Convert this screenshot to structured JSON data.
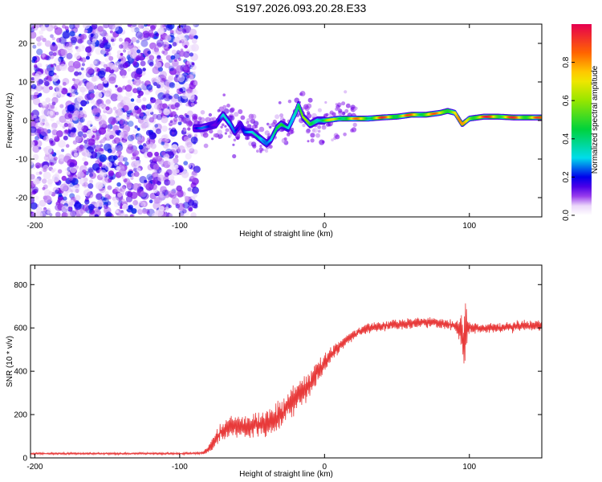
{
  "title": "S197.2026.093.20.28.E33",
  "chart_data": [
    {
      "type": "heatmap",
      "name": "spectrogram",
      "xlabel": "Height of straight line (km)",
      "ylabel": "Frequency (Hz)",
      "xlim": [
        -203,
        150
      ],
      "ylim": [
        -25,
        25
      ],
      "xticks": [
        -200,
        -100,
        0,
        100
      ],
      "xtick_labels": [
        "-200",
        "-100",
        "0",
        "100"
      ],
      "yticks": [
        -20,
        -10,
        0,
        10,
        20
      ],
      "ytick_labels": [
        "-20",
        "-10",
        "0",
        "10",
        "20"
      ],
      "noise_region_x": [
        -203,
        -88
      ],
      "signal_trace": {
        "x": [
          -90,
          -85,
          -80,
          -75,
          -70,
          -65,
          -62,
          -58,
          -55,
          -50,
          -45,
          -40,
          -37,
          -33,
          -30,
          -25,
          -20,
          -18,
          -15,
          -10,
          -5,
          0,
          10,
          20,
          30,
          40,
          50,
          60,
          70,
          80,
          85,
          90,
          95,
          100,
          110,
          120,
          130,
          140,
          150
        ],
        "frequency": [
          -2,
          -2,
          -1.5,
          -1,
          1.5,
          -1,
          -3,
          -1,
          -3,
          -3,
          -4.5,
          -6,
          -5,
          -2,
          -1,
          -2,
          2,
          4,
          1,
          -1,
          0,
          0,
          0.5,
          0.5,
          0.5,
          0.8,
          1,
          1.5,
          1.5,
          2,
          2.5,
          2,
          -1,
          0.5,
          1,
          1,
          0.8,
          0.8,
          0.8
        ],
        "amplitude": [
          0.2,
          0.25,
          0.3,
          0.25,
          0.35,
          0.3,
          0.35,
          0.3,
          0.35,
          0.3,
          0.45,
          0.5,
          0.45,
          0.45,
          0.5,
          0.55,
          0.6,
          0.55,
          0.6,
          0.6,
          0.7,
          0.65,
          0.75,
          0.85,
          0.8,
          0.95,
          0.85,
          0.9,
          0.9,
          0.85,
          0.95,
          0.9,
          0.8,
          0.95,
          0.95,
          1.0,
          0.95,
          0.95,
          0.9
        ]
      },
      "colorbar": {
        "label": "Normalized spectral amplitude",
        "range": [
          0,
          1
        ],
        "ticks": [
          0.0,
          0.2,
          0.4,
          0.6,
          0.8
        ],
        "tick_labels": [
          "0.0",
          "0.2",
          "0.4",
          "0.6",
          "0.8"
        ]
      }
    },
    {
      "type": "line",
      "name": "snr",
      "xlabel": "Height of straight line (km)",
      "ylabel": "SNR (10 * v/v)",
      "xlim": [
        -203,
        150
      ],
      "ylim": [
        0,
        890
      ],
      "xticks": [
        -200,
        -100,
        0,
        100
      ],
      "xtick_labels": [
        "-200",
        "-100",
        "0",
        "100"
      ],
      "yticks": [
        0,
        200,
        400,
        600,
        800
      ],
      "ytick_labels": [
        "0",
        "200",
        "400",
        "600",
        "800"
      ],
      "color": "#e83a3a",
      "envelope": {
        "x": [
          -203,
          -150,
          -100,
          -85,
          -80,
          -75,
          -70,
          -60,
          -50,
          -40,
          -30,
          -20,
          -10,
          0,
          10,
          20,
          30,
          40,
          50,
          60,
          70,
          80,
          90,
          94,
          96,
          98,
          100,
          110,
          120,
          130,
          140,
          150
        ],
        "mean": [
          20,
          20,
          20,
          22,
          40,
          90,
          130,
          150,
          150,
          160,
          200,
          280,
          340,
          440,
          520,
          570,
          600,
          610,
          615,
          620,
          625,
          620,
          610,
          600,
          560,
          610,
          600,
          600,
          600,
          605,
          610,
          610
        ],
        "amplitude": [
          8,
          8,
          8,
          10,
          30,
          60,
          80,
          90,
          100,
          110,
          120,
          120,
          110,
          70,
          50,
          40,
          40,
          40,
          40,
          40,
          40,
          40,
          40,
          120,
          330,
          160,
          40,
          40,
          40,
          40,
          40,
          40
        ]
      }
    }
  ]
}
